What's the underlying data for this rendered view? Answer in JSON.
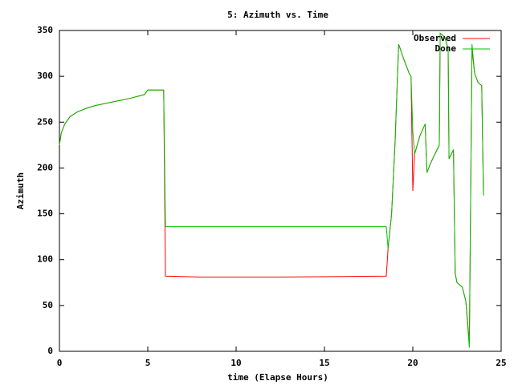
{
  "chart_data": {
    "type": "line",
    "title": "5: Azimuth vs. Time",
    "x_label": "time (Elapse Hours)",
    "y_label": "Azimuth",
    "x": [
      0,
      0.1,
      0.3,
      0.6,
      1,
      1.5,
      2,
      3,
      4,
      4.8,
      5,
      5.9,
      6,
      8,
      12.5,
      18.5,
      18.6,
      18.8,
      19.0,
      19.2,
      19.5,
      19.8,
      19.9,
      20.0,
      20.1,
      20.4,
      20.7,
      20.8,
      21.0,
      21.3,
      21.5,
      21.55,
      21.8,
      22.0,
      22.05,
      22.3,
      22.4,
      22.5,
      22.8,
      23.0,
      23.2,
      23.35,
      23.5,
      23.7,
      23.9,
      24.0
    ],
    "series": [
      {
        "name": "Observed",
        "color": "#ff0000",
        "values": [
          225,
          238,
          248,
          256,
          261,
          265,
          268,
          272,
          276,
          280,
          285,
          285,
          82,
          81,
          81,
          82,
          112,
          150,
          230,
          335,
          318,
          303,
          300,
          175,
          215,
          235,
          248,
          195,
          205,
          217,
          225,
          347,
          343,
          330,
          210,
          220,
          85,
          75,
          70,
          55,
          10,
          330,
          303,
          293,
          290,
          170
        ]
      },
      {
        "name": "Done",
        "color": "#00c000",
        "values": [
          225,
          238,
          248,
          256,
          261,
          265,
          268,
          272,
          276,
          280,
          285,
          285,
          136,
          136,
          136,
          136,
          112,
          150,
          230,
          335,
          318,
          303,
          300,
          240,
          215,
          235,
          248,
          195,
          205,
          217,
          225,
          347,
          343,
          330,
          210,
          220,
          85,
          75,
          70,
          55,
          4,
          335,
          303,
          293,
          290,
          170
        ]
      }
    ],
    "xlim": [
      0,
      25
    ],
    "xticks": [
      0,
      5,
      10,
      15,
      20,
      25
    ],
    "ylim": [
      0,
      350
    ],
    "yticks": [
      0,
      50,
      100,
      150,
      200,
      250,
      300,
      350
    ],
    "grid": false,
    "legend": "top-right"
  }
}
